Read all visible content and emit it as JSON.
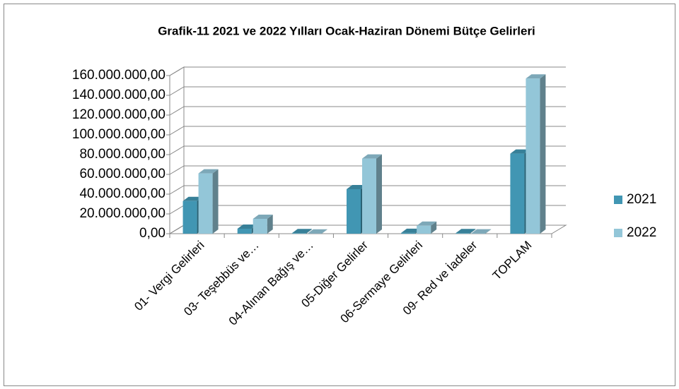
{
  "chart_data": {
    "type": "bar3d",
    "title": "Grafik-11 2021 ve 2022 Yılları Ocak-Haziran Dönemi Bütçe Gelirleri",
    "categories": [
      "01- Vergi Gelirleri",
      "03- Teşebbüs ve…",
      "04-Alınan Bağış ve…",
      "05-Diğer Gelirler",
      "06-Sermaye Gelirleri",
      "09- Red ve İadeler",
      "TOPLAM"
    ],
    "series": [
      {
        "name": "2021",
        "color": "#4196b3",
        "values": [
          33000000,
          5000000,
          500000,
          45000000,
          800000,
          500000,
          81000000
        ]
      },
      {
        "name": "2022",
        "color": "#93c6d8",
        "values": [
          61000000,
          15000000,
          200000,
          76000000,
          8000000,
          300000,
          157000000
        ]
      }
    ],
    "ylim": [
      0,
      160000000
    ],
    "yticks": [
      {
        "value": 0,
        "label": "0,00"
      },
      {
        "value": 20000000,
        "label": "20.000.000,00"
      },
      {
        "value": 40000000,
        "label": "40.000.000,00"
      },
      {
        "value": 60000000,
        "label": "60.000.000,00"
      },
      {
        "value": 80000000,
        "label": "80.000.000,00"
      },
      {
        "value": 100000000,
        "label": "100.000.000,00"
      },
      {
        "value": 120000000,
        "label": "120.000.000,00"
      },
      {
        "value": 140000000,
        "label": "140.000.000,00"
      },
      {
        "value": 160000000,
        "label": "160.000.000,00"
      }
    ],
    "grid": true,
    "legend": "right"
  }
}
